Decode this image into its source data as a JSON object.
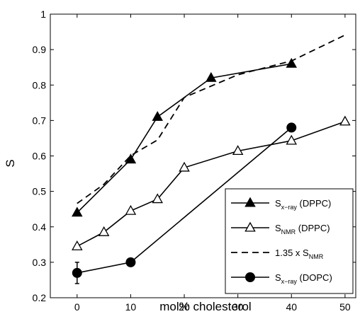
{
  "chart_data": {
    "type": "line",
    "xlabel": "mol% cholesterol",
    "ylabel": "S",
    "xlim": [
      -5,
      52
    ],
    "ylim": [
      0.2,
      1.0
    ],
    "xticks": [
      0,
      10,
      20,
      30,
      40,
      50
    ],
    "yticks": [
      0.2,
      0.3,
      0.4,
      0.5,
      0.6,
      0.7,
      0.8,
      0.9,
      1.0
    ],
    "ytick_labels": [
      "0.2",
      "0.3",
      "0.4",
      "0.5",
      "0.6",
      "0.7",
      "0.8",
      "0.9",
      "1"
    ],
    "grid": false,
    "legend_position": "bottom-right",
    "series": [
      {
        "name": "S",
        "name_sub": "x−ray",
        "name_suffix": " (DPPC)",
        "marker": "triangle-filled",
        "line": "solid",
        "x": [
          0,
          10,
          15,
          25,
          40
        ],
        "y": [
          0.44,
          0.59,
          0.71,
          0.82,
          0.86
        ]
      },
      {
        "name": "S",
        "name_sub": "NMR",
        "name_suffix": " (DPPC)",
        "marker": "triangle-open",
        "line": "solid",
        "x": [
          0,
          5,
          10,
          15,
          20,
          30,
          40,
          50
        ],
        "y": [
          0.345,
          0.385,
          0.445,
          0.478,
          0.567,
          0.614,
          0.643,
          0.697
        ]
      },
      {
        "name": "1.35 x S",
        "name_sub": "NMR",
        "name_suffix": "",
        "marker": "none",
        "line": "dashed",
        "x": [
          0,
          5,
          10,
          15,
          20,
          30,
          40,
          50
        ],
        "y": [
          0.466,
          0.52,
          0.601,
          0.645,
          0.765,
          0.829,
          0.868,
          0.941
        ]
      },
      {
        "name": "S",
        "name_sub": "x−ray",
        "name_suffix": " (DOPC)",
        "marker": "circle-filled",
        "line": "solid",
        "x": [
          0,
          10,
          40
        ],
        "y": [
          0.27,
          0.3,
          0.68
        ],
        "error": [
          0.03,
          0,
          0
        ]
      }
    ]
  }
}
